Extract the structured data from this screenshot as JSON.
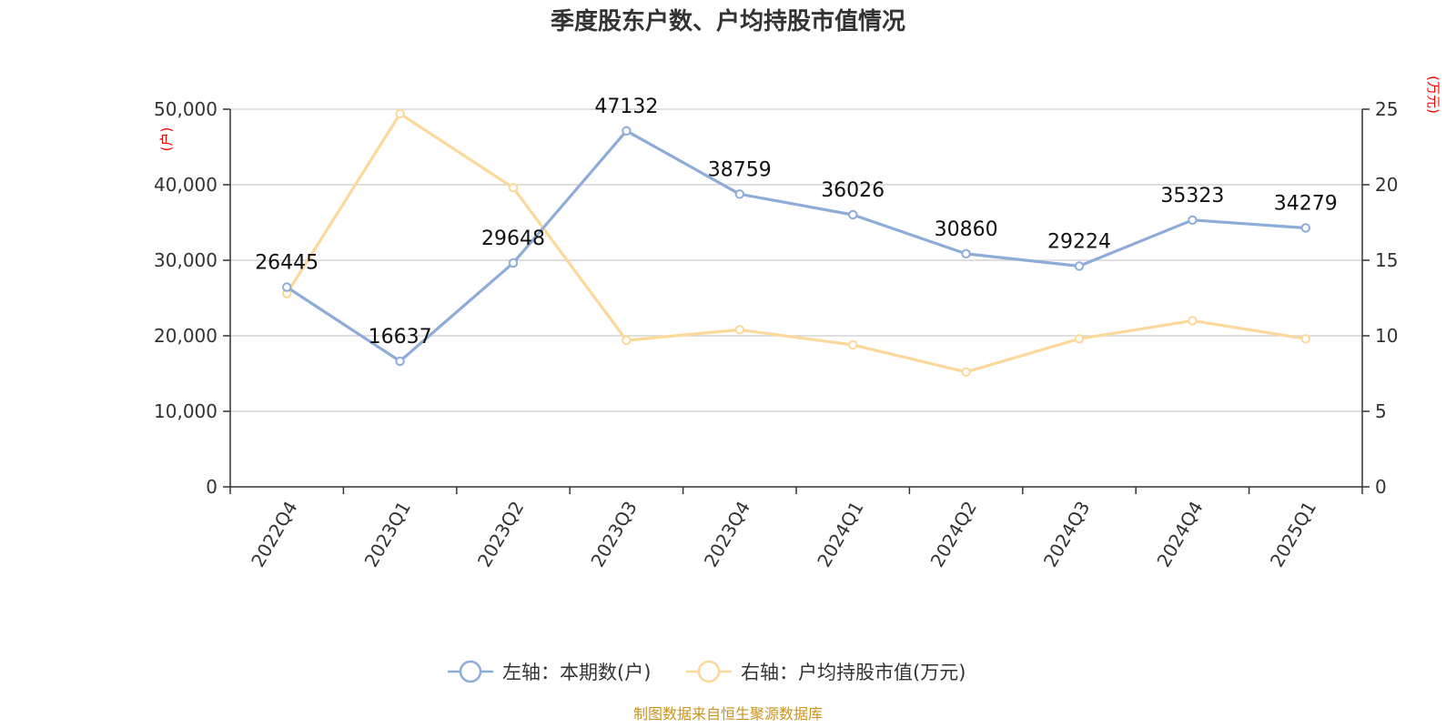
{
  "chart_data": {
    "type": "line",
    "title": "季度股东户数、户均持股市值情况",
    "categories": [
      "2022Q4",
      "2023Q1",
      "2023Q2",
      "2023Q3",
      "2023Q4",
      "2024Q1",
      "2024Q2",
      "2024Q3",
      "2024Q4",
      "2025Q1"
    ],
    "y_left": {
      "unit": "(户)",
      "ylim": [
        0,
        50000
      ],
      "ticks": [
        0,
        10000,
        20000,
        30000,
        40000,
        50000
      ],
      "tick_labels": [
        "0",
        "10,000",
        "20,000",
        "30,000",
        "40,000",
        "50,000"
      ]
    },
    "y_right": {
      "unit": "(万元)",
      "ylim": [
        0,
        25
      ],
      "ticks": [
        0,
        5,
        10,
        15,
        20,
        25
      ],
      "tick_labels": [
        "0",
        "5",
        "10",
        "15",
        "20",
        "25"
      ]
    },
    "series": [
      {
        "name": "左轴：本期数(户)",
        "axis": "left",
        "color": "#8eacd8",
        "values": [
          26445,
          16637,
          29648,
          47132,
          38759,
          36026,
          30860,
          29224,
          35323,
          34279
        ],
        "data_labels": [
          "26445",
          "16637",
          "29648",
          "47132",
          "38759",
          "36026",
          "30860",
          "29224",
          "35323",
          "34279"
        ]
      },
      {
        "name": "右轴：户均持股市值(万元)",
        "axis": "right",
        "color": "#fcd99a",
        "values": [
          12.8,
          24.7,
          19.8,
          9.7,
          10.4,
          9.4,
          7.6,
          9.8,
          11.0,
          9.8
        ]
      }
    ],
    "grid": true,
    "legend": "bottom-center"
  },
  "source": "制图数据来自恒生聚源数据库"
}
